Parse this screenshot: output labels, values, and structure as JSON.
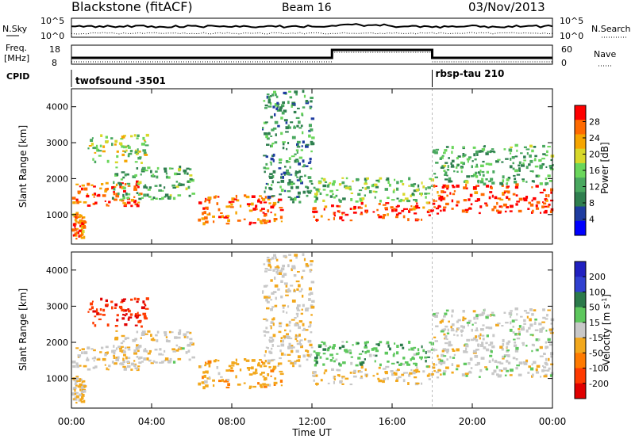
{
  "header": {
    "title": "Blackstone (fitACF)",
    "beam": "Beam 16",
    "date": "03/Nov/2013"
  },
  "noise_panel": {
    "left_label": "N.Sky",
    "left_tick_top": "10^5",
    "left_tick_bottom": "10^0",
    "right_label": "N.Search",
    "right_tick_top": "10^5",
    "right_tick_bottom": "10^0"
  },
  "freq_panel": {
    "left_label": "Freq.",
    "left_unit": "[MHz]",
    "left_tick_top": "18",
    "left_tick_bottom": "8",
    "right_label": "Nave",
    "right_tick_top": "60",
    "right_tick_bottom": "0",
    "step_time_hours": 13.0,
    "step_end_hours": 18.0
  },
  "cpid_panel": {
    "label": "CPID",
    "segments": [
      {
        "name": "twofsound -3501",
        "start_hours": 0.0
      },
      {
        "name": "rbsp-tau 210",
        "start_hours": 18.0
      }
    ]
  },
  "power_panel": {
    "ylabel": "Slant Range [km]",
    "yticks": [
      "1000",
      "2000",
      "3000",
      "4000"
    ],
    "colorbar_label": "Power [dB]",
    "colorbar_ticks": [
      "28",
      "24",
      "20",
      "16",
      "12",
      "8",
      "4"
    ],
    "colors": [
      "#0000ff",
      "#1e3ca0",
      "#2f7f4f",
      "#49a85f",
      "#6ad65b",
      "#d8d829",
      "#f6a500",
      "#ff6a00",
      "#ff0000"
    ]
  },
  "velocity_panel": {
    "ylabel": "Slant Range [km]",
    "yticks": [
      "1000",
      "2000",
      "3000",
      "4000"
    ],
    "colorbar_label": "Velocity [m s",
    "colorbar_label_sup": "-1",
    "colorbar_label_end": "]",
    "colorbar_ticks": [
      "200",
      "100",
      "50",
      "15",
      "-15",
      "-50",
      "-100",
      "-200"
    ],
    "colors": [
      "#2020c0",
      "#3040d0",
      "#2b7a4a",
      "#5dc75d",
      "#c8c8c8",
      "#f2a81d",
      "#ff7a00",
      "#ff3a00",
      "#e00000"
    ]
  },
  "xaxis": {
    "label": "Time UT",
    "ticks": [
      "00:00",
      "04:00",
      "08:00",
      "12:00",
      "16:00",
      "20:00",
      "00:00"
    ]
  },
  "chart_data": {
    "type": "heatmap",
    "title": "Blackstone (fitACF)",
    "subtitle": "Beam 16",
    "date": "03/Nov/2013",
    "xlabel": "Time UT",
    "xlim_hours": [
      0,
      24
    ],
    "ylabel": "Slant Range [km]",
    "ylim_km": [
      180,
      4500
    ],
    "power_colorbar": {
      "label": "Power [dB]",
      "range": [
        0,
        30
      ],
      "ticks": [
        4,
        8,
        12,
        16,
        20,
        24,
        28
      ]
    },
    "velocity_colorbar": {
      "label": "Velocity [m s-1]",
      "range": [
        -250,
        250
      ],
      "ticks": [
        200,
        100,
        50,
        15,
        -15,
        -50,
        -100,
        -200
      ]
    },
    "echo_regions": [
      {
        "t0": 0.0,
        "t1": 0.6,
        "r0": 300,
        "r1": 1000,
        "power": 24,
        "velocity": -40
      },
      {
        "t0": 0.0,
        "t1": 3.5,
        "r0": 1200,
        "r1": 1900,
        "power": 26,
        "velocity": -20
      },
      {
        "t0": 0.8,
        "t1": 3.8,
        "r0": 2400,
        "r1": 3200,
        "power": 16,
        "velocity": -180
      },
      {
        "t0": 2.0,
        "t1": 6.0,
        "r0": 1400,
        "r1": 2300,
        "power": 12,
        "velocity": -10
      },
      {
        "t0": 6.3,
        "t1": 10.5,
        "r0": 700,
        "r1": 1500,
        "power": 25,
        "velocity": -60
      },
      {
        "t0": 9.5,
        "t1": 12.0,
        "r0": 1300,
        "r1": 4400,
        "power": 10,
        "velocity": -20
      },
      {
        "t0": 12.0,
        "t1": 18.0,
        "r0": 800,
        "r1": 1300,
        "power": 27,
        "velocity": -30
      },
      {
        "t0": 12.0,
        "t1": 18.0,
        "r0": 1300,
        "r1": 2000,
        "power": 14,
        "velocity": 60
      },
      {
        "t0": 18.0,
        "t1": 24.0,
        "r0": 1000,
        "r1": 1800,
        "power": 28,
        "velocity": 0
      },
      {
        "t0": 18.0,
        "t1": 24.0,
        "r0": 1800,
        "r1": 2900,
        "power": 12,
        "velocity": 0
      }
    ]
  }
}
